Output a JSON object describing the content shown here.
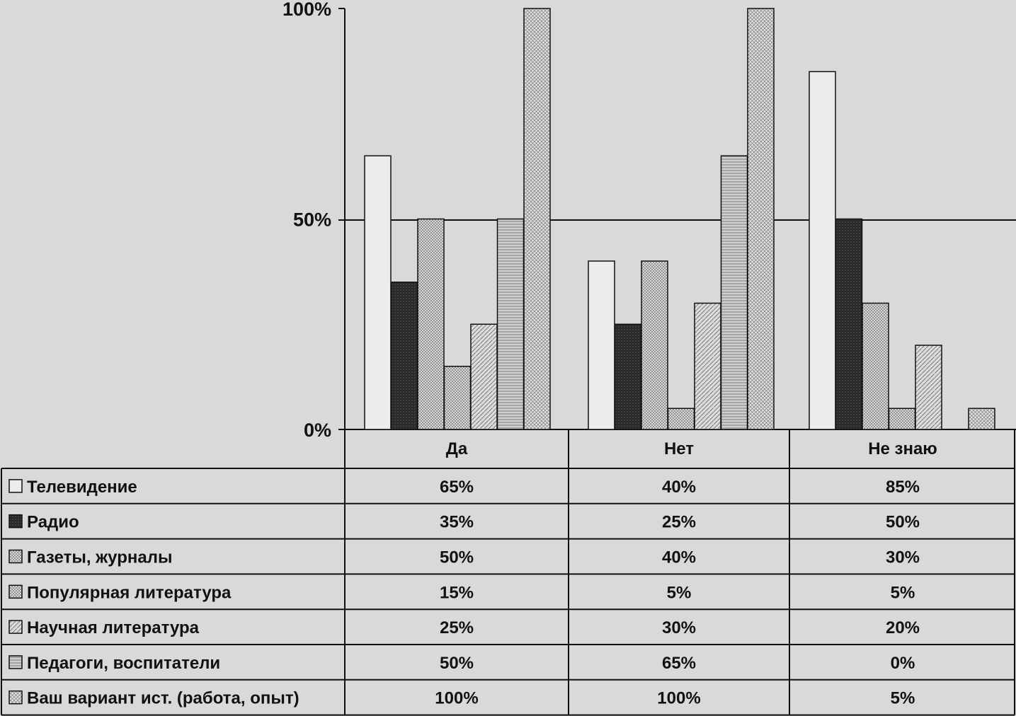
{
  "chart_data": {
    "type": "bar",
    "categories": [
      "Да",
      "Нет",
      "Не знаю"
    ],
    "y_ticks": [
      "0%",
      "50%",
      "100%"
    ],
    "ylim": [
      0,
      100
    ],
    "grid": false,
    "legend": "table-below",
    "series": [
      {
        "name": "Телевидение",
        "values": [
          65,
          40,
          85
        ],
        "labels": [
          "65%",
          "40%",
          "85%"
        ],
        "fill": "#ececec",
        "pattern": "none"
      },
      {
        "name": "Радио",
        "values": [
          35,
          25,
          50
        ],
        "labels": [
          "35%",
          "25%",
          "50%"
        ],
        "fill": "#2e2e2e",
        "pattern": "dots-dark"
      },
      {
        "name": "Газеты, журналы",
        "values": [
          50,
          40,
          30
        ],
        "labels": [
          "50%",
          "40%",
          "30%"
        ],
        "fill": "#c4c4c4",
        "pattern": "dots"
      },
      {
        "name": "Популярная литература",
        "values": [
          15,
          5,
          5
        ],
        "labels": [
          "15%",
          "5%",
          "5%"
        ],
        "fill": "#a9a9a9",
        "pattern": "dots"
      },
      {
        "name": "Научная литература",
        "values": [
          25,
          30,
          20
        ],
        "labels": [
          "25%",
          "30%",
          "20%"
        ],
        "fill": "#d0d0d0",
        "pattern": "hatch"
      },
      {
        "name": "Педагоги, воспитатели",
        "values": [
          50,
          65,
          0
        ],
        "labels": [
          "50%",
          "65%",
          "0%"
        ],
        "fill": "#bdbdbd",
        "pattern": "hlines"
      },
      {
        "name": "Ваш вариант ист. (работа, опыт)",
        "values": [
          100,
          100,
          5
        ],
        "labels": [
          "100%",
          "100%",
          "5%"
        ],
        "fill": "#dedede",
        "pattern": "crosshatch"
      }
    ]
  }
}
